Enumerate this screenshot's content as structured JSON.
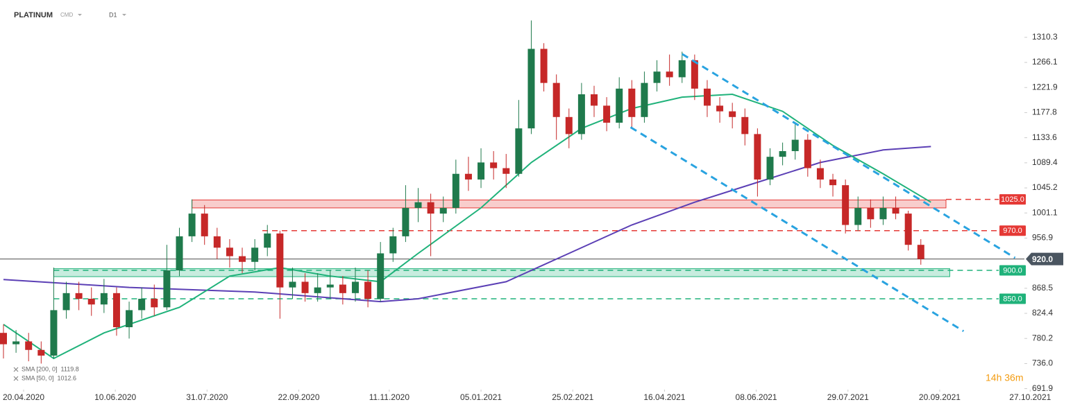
{
  "chart_data": {
    "type": "candlestick",
    "title": "PLATINUM",
    "subtitle": "CMD",
    "timeframe": "D1",
    "countdown": "14h 36m",
    "xlim": [
      0,
      84.5
    ],
    "ylim": [
      656,
      1376
    ],
    "yticks": [
      {
        "value": 1310.3,
        "label": "1310.3"
      },
      {
        "value": 1266.1,
        "label": "1266.1"
      },
      {
        "value": 1221.9,
        "label": "1221.9"
      },
      {
        "value": 1177.8,
        "label": "1177.8"
      },
      {
        "value": 1133.6,
        "label": "1133.6"
      },
      {
        "value": 1089.4,
        "label": "1089.4"
      },
      {
        "value": 1045.2,
        "label": "1045.2"
      },
      {
        "value": 1001.1,
        "label": "1001.1"
      },
      {
        "value": 956.9,
        "label": "956.9"
      },
      {
        "value": 868.5,
        "label": "868.5"
      },
      {
        "value": 824.4,
        "label": "824.4"
      },
      {
        "value": 780.2,
        "label": "780.2"
      },
      {
        "value": 736.0,
        "label": "736.0"
      },
      {
        "value": 691.9,
        "label": "691.9"
      }
    ],
    "xticks": [
      {
        "value": 1.6,
        "label": "20.04.2020"
      },
      {
        "value": 8.9,
        "label": "10.06.2020"
      },
      {
        "value": 16.2,
        "label": "31.07.2020"
      },
      {
        "value": 23.5,
        "label": "22.09.2020"
      },
      {
        "value": 30.7,
        "label": "11.11.2020"
      },
      {
        "value": 38.0,
        "label": "05.01.2021"
      },
      {
        "value": 45.3,
        "label": "25.02.2021"
      },
      {
        "value": 52.6,
        "label": "16.04.2021"
      },
      {
        "value": 59.9,
        "label": "08.06.2021"
      },
      {
        "value": 67.2,
        "label": "29.07.2021"
      },
      {
        "value": 74.5,
        "label": "20.09.2021"
      },
      {
        "value": 81.7,
        "label": "27.10.2021"
      }
    ],
    "candles": {
      "up_color": "#1f7a4c",
      "down_color": "#c62828",
      "open": [
        790,
        770,
        775,
        760,
        750,
        830,
        860,
        850,
        840,
        860,
        800,
        830,
        850,
        835,
        900,
        960,
        1000,
        960,
        940,
        925,
        915,
        940,
        965,
        870,
        880,
        860,
        870,
        875,
        860,
        880,
        850,
        930,
        960,
        1010,
        1020,
        1000,
        1010,
        1070,
        1060,
        1090,
        1080,
        1070,
        1150,
        1290,
        1230,
        1170,
        1140,
        1210,
        1190,
        1160,
        1220,
        1170,
        1230,
        1250,
        1240,
        1270,
        1220,
        1190,
        1180,
        1170,
        1140,
        1060,
        1100,
        1110,
        1130,
        1080,
        1060,
        1050,
        980,
        1010,
        990,
        1010,
        1000,
        945
      ],
      "high": [
        805,
        795,
        790,
        775,
        905,
        880,
        880,
        870,
        885,
        870,
        845,
        870,
        875,
        945,
        975,
        1025,
        1015,
        975,
        955,
        940,
        955,
        980,
        970,
        905,
        895,
        895,
        900,
        890,
        905,
        900,
        950,
        975,
        1050,
        1045,
        1035,
        1030,
        1095,
        1100,
        1115,
        1110,
        1105,
        1200,
        1340,
        1300,
        1245,
        1185,
        1230,
        1225,
        1205,
        1240,
        1235,
        1250,
        1270,
        1280,
        1285,
        1280,
        1235,
        1205,
        1195,
        1185,
        1150,
        1115,
        1125,
        1160,
        1140,
        1095,
        1070,
        1060,
        1030,
        1025,
        1030,
        1030,
        1005,
        955
      ],
      "low": [
        745,
        755,
        740,
        736,
        745,
        815,
        830,
        820,
        825,
        785,
        780,
        815,
        820,
        830,
        890,
        950,
        945,
        920,
        905,
        895,
        900,
        925,
        815,
        850,
        845,
        845,
        850,
        840,
        845,
        835,
        845,
        915,
        950,
        985,
        925,
        985,
        1000,
        1040,
        1045,
        1060,
        1045,
        1065,
        1140,
        1215,
        1130,
        1115,
        1130,
        1170,
        1145,
        1150,
        1150,
        1160,
        1215,
        1225,
        1230,
        1200,
        1170,
        1160,
        1150,
        1120,
        1030,
        1050,
        1085,
        1095,
        1065,
        1045,
        1030,
        965,
        970,
        975,
        980,
        990,
        935,
        910
      ],
      "close": [
        770,
        775,
        760,
        750,
        830,
        860,
        850,
        840,
        860,
        800,
        830,
        850,
        835,
        900,
        960,
        1000,
        960,
        940,
        925,
        915,
        940,
        965,
        870,
        880,
        860,
        870,
        875,
        860,
        880,
        850,
        930,
        960,
        1010,
        1020,
        1000,
        1010,
        1070,
        1060,
        1090,
        1080,
        1070,
        1150,
        1290,
        1230,
        1170,
        1140,
        1210,
        1190,
        1160,
        1220,
        1170,
        1230,
        1250,
        1240,
        1270,
        1220,
        1190,
        1180,
        1170,
        1140,
        1060,
        1100,
        1110,
        1130,
        1080,
        1060,
        1050,
        980,
        1010,
        990,
        1010,
        1000,
        945,
        920
      ]
    },
    "series": [
      {
        "name": "SMA [200, 0]",
        "last": 1119.8,
        "color": "#5b3fb5",
        "x": [
          0,
          10,
          20,
          30,
          33,
          40,
          45,
          50,
          55,
          60,
          65,
          70,
          73.8
        ],
        "values": [
          884,
          870,
          862,
          845,
          850,
          880,
          930,
          980,
          1020,
          1055,
          1090,
          1112,
          1118
        ]
      },
      {
        "name": "SMA [50, 0]",
        "last": 1012.6,
        "color": "#1fb27a",
        "x": [
          0,
          4,
          8,
          14,
          18,
          22,
          26,
          30,
          33,
          38,
          42,
          46,
          50,
          54,
          58,
          62,
          66,
          70,
          73.8
        ],
        "values": [
          805,
          745,
          790,
          835,
          890,
          905,
          890,
          880,
          930,
          1010,
          1090,
          1150,
          1185,
          1205,
          1210,
          1180,
          1120,
          1070,
          1020
        ]
      }
    ],
    "trendlines": [
      {
        "color": "#29a3e0",
        "x": [
          54,
          80.5
        ],
        "values": [
          1281,
          922
        ]
      },
      {
        "color": "#29a3e0",
        "x": [
          49.9,
          76.4
        ],
        "values": [
          1152,
          793
        ]
      }
    ],
    "zones": [
      {
        "color": "#e53935",
        "x": [
          15.0,
          75.0
        ],
        "range": [
          1010,
          1024
        ]
      },
      {
        "color": "#1fb27a",
        "x": [
          4.0,
          75.3
        ],
        "range": [
          889,
          903
        ]
      }
    ],
    "levels": [
      {
        "value": 1025,
        "label": "1025.0",
        "color": "#e53935",
        "x": [
          75.0,
          79.2
        ]
      },
      {
        "value": 970,
        "label": "970.0",
        "color": "#e53935",
        "x": [
          20.6,
          79.2
        ]
      },
      {
        "value": 900,
        "label": "900.0",
        "color": "#1fb27a",
        "x": [
          4.0,
          79.2
        ]
      },
      {
        "value": 850,
        "label": "850.0",
        "color": "#1fb27a",
        "x": [
          4.0,
          79.2
        ]
      }
    ],
    "current": {
      "value": 920,
      "label": "920.0",
      "color": "#4a5560"
    }
  }
}
